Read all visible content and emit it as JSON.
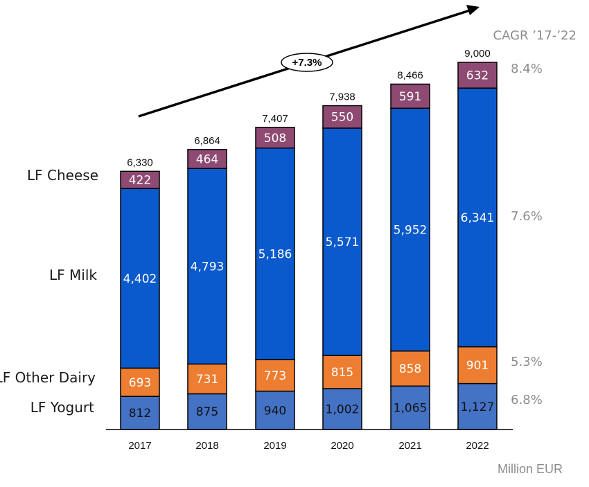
{
  "chart_data": {
    "type": "bar",
    "stacked": true,
    "categories": [
      "2017",
      "2018",
      "2019",
      "2020",
      "2021",
      "2022"
    ],
    "series": [
      {
        "name": "LF Yogurt",
        "color": "#4472C4",
        "label_color": "#111111",
        "cagr": "6.8%",
        "values": [
          812,
          875,
          940,
          1002,
          1065,
          1127
        ],
        "labels": [
          "812",
          "875",
          "940",
          "1,002",
          "1,065",
          "1,127"
        ]
      },
      {
        "name": "LF Other Dairy",
        "color": "#ED7D31",
        "label_color": "#ffffff",
        "cagr": "5.3%",
        "values": [
          693,
          731,
          773,
          815,
          858,
          901
        ],
        "labels": [
          "693",
          "731",
          "773",
          "815",
          "858",
          "901"
        ]
      },
      {
        "name": "LF Milk",
        "color": "#0B5ACD",
        "label_color": "#ffffff",
        "cagr": "7.6%",
        "values": [
          4402,
          4793,
          5186,
          5571,
          5952,
          6341
        ],
        "labels": [
          "4,402",
          "4,793",
          "5,186",
          "5,571",
          "5,952",
          "6,341"
        ]
      },
      {
        "name": "LF Cheese",
        "color": "#8E4A72",
        "label_color": "#ffffff",
        "cagr": "8.4%",
        "values": [
          422,
          464,
          508,
          550,
          591,
          632
        ],
        "labels": [
          "422",
          "464",
          "508",
          "550",
          "591",
          "632"
        ]
      }
    ],
    "totals": [
      "6,330",
      "6,864",
      "7,407",
      "7,938",
      "8,466",
      "9,000"
    ],
    "cagr_title": "CAGR ’17-’22",
    "overall_growth": "+7.3%",
    "unit": "Million EUR",
    "ylim": [
      0,
      9000
    ],
    "grid": false,
    "legend": "left, series names beside bars"
  }
}
